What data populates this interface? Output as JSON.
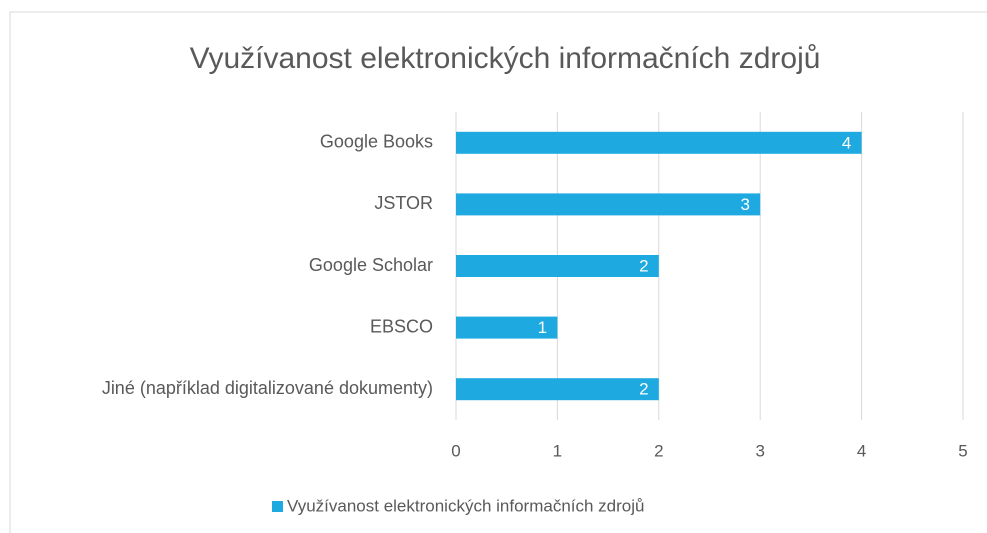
{
  "chart_data": {
    "type": "bar",
    "orientation": "horizontal",
    "title": "Využívanost elektronických informačních zdrojů",
    "categories": [
      "Google Books",
      "JSTOR",
      "Google Scholar",
      "EBSCO",
      "Jiné (například digitalizované dokumenty)"
    ],
    "series": [
      {
        "name": "Využívanost elektronických informačních zdrojů",
        "color": "#1eaae1",
        "values": [
          4,
          3,
          2,
          1,
          2
        ]
      }
    ],
    "xlim": [
      0,
      5
    ],
    "xticks": [
      0,
      1,
      2,
      3,
      4,
      5
    ],
    "grid": true,
    "legend": "bottom"
  }
}
